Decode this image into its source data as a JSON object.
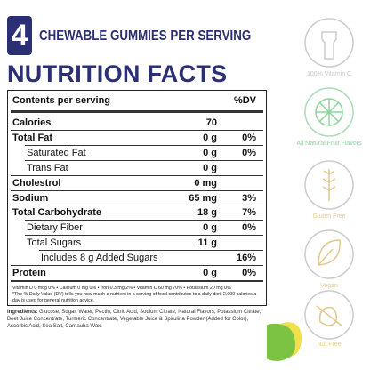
{
  "header": {
    "badge": "4",
    "subtitle": "CHEWABLE GUMMIES PER SERVING",
    "title": "NUTRITION FACTS"
  },
  "table": {
    "header": {
      "label": "Contents per serving",
      "dv": "%DV"
    },
    "rows": [
      {
        "label": "Calories",
        "amount": "70",
        "bold": true
      },
      {
        "label": "Total Fat",
        "amount": "0 g",
        "dv": "0%",
        "bold": true
      },
      {
        "label": "Saturated Fat",
        "amount": "0 g",
        "dv": "0%",
        "indent": 1
      },
      {
        "label": "Trans Fat",
        "amount": "0 g",
        "indent": 1
      },
      {
        "label": "Cholestrol",
        "amount": "0 mg",
        "bold": true
      },
      {
        "label": "Sodium",
        "amount": "65 mg",
        "dv": "3%",
        "bold": true
      },
      {
        "label": "Total Carbohydrate",
        "amount": "18 g",
        "dv": "7%",
        "bold": true
      },
      {
        "label": "Dietary Fiber",
        "amount": "0 g",
        "dv": "0%",
        "indent": 1
      },
      {
        "label": "Total Sugars",
        "amount": "11 g",
        "indent": 1
      },
      {
        "label": "Includes 8 g Added Sugars",
        "dv": "16%",
        "indent": 2
      },
      {
        "label": "Protein",
        "amount": "0 g",
        "dv": "0%",
        "bold": true
      }
    ],
    "footnote": "Vitamin D 0 mcg 0% • Calcium 0 mg 0% • Iron 0.3 mg 2% • Vitamin C 60 mg 70% • Potassium 20 mg 0%",
    "dv_note": "*The % Daily Value (DV) tells you how much a nutrient in a serving of food contributes to a daily diet. 2,000 calories a day is used for general nutrition advice."
  },
  "ingredients": {
    "label": "Ingredients:",
    "text": "Glucose, Sugar, Water, Pectin, Citric Acid, Sodium Citrate, Natural Flavors, Potassium Citrate, Beet Juice Concentrate, Turmeric Concentrate, Vegetable Juice & Spirulina Powder (Added for Color), Ascorbic Acid, Sea Salt, Carnauba Wax."
  },
  "badges": [
    "100% Vitamin C",
    "All Natural Fruit Flavors",
    "Gluten Free",
    "Vegan",
    "Nut Free"
  ]
}
